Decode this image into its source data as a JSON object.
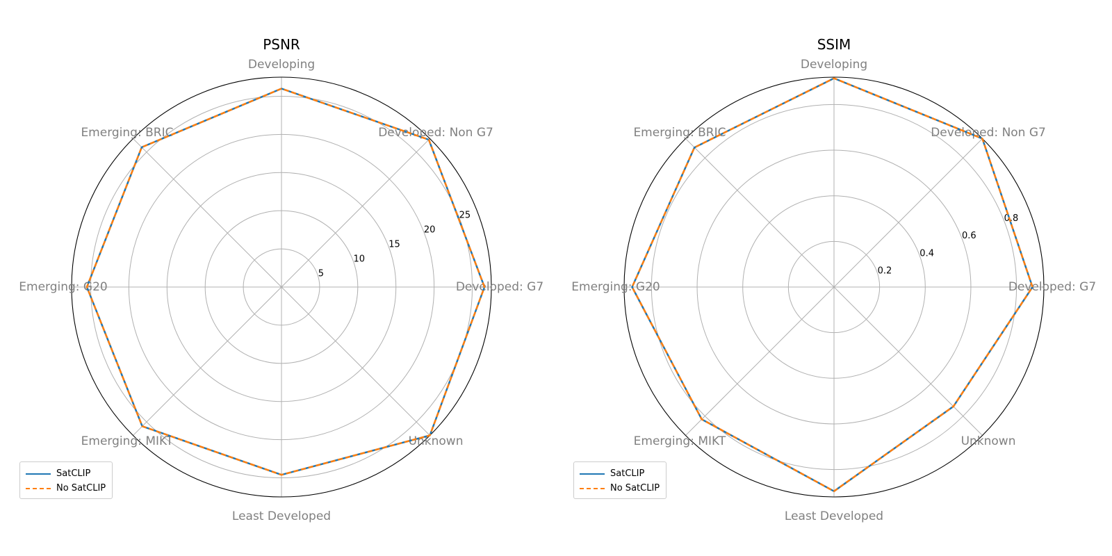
{
  "chart_data": [
    {
      "type": "radar",
      "title": "PSNR",
      "categories": [
        "Developed: G7",
        "Developed: Non G7",
        "Developing",
        "Emerging: BRIC",
        "Emerging: G20",
        "Emerging: MIKT",
        "Least Developed",
        "Unknown"
      ],
      "rlim": [
        0,
        27.5
      ],
      "rticks": [
        5,
        10,
        15,
        20,
        25
      ],
      "rtick_labels": [
        "5",
        "10",
        "15",
        "20",
        "25"
      ],
      "grid": true,
      "legend_position": "lower-left",
      "series": [
        {
          "name": "SatCLIP",
          "color": "#1f77b4",
          "linestyle": "solid",
          "values": [
            26.6,
            27.3,
            26.0,
            25.9,
            25.5,
            25.8,
            24.6,
            27.5
          ]
        },
        {
          "name": "No SatCLIP",
          "color": "#ff7f0e",
          "linestyle": "dashed",
          "values": [
            26.6,
            27.3,
            26.0,
            25.9,
            25.5,
            25.8,
            24.6,
            27.5
          ]
        }
      ]
    },
    {
      "type": "radar",
      "title": "SSIM",
      "categories": [
        "Developed: G7",
        "Developed: Non G7",
        "Developing",
        "Emerging: BRIC",
        "Emerging: G20",
        "Emerging: MIKT",
        "Least Developed",
        "Unknown"
      ],
      "rlim": [
        0,
        0.92
      ],
      "rticks": [
        0.2,
        0.4,
        0.6,
        0.8
      ],
      "rtick_labels": [
        "0.2",
        "0.4",
        "0.6",
        "0.8"
      ],
      "grid": true,
      "legend_position": "lower-left",
      "series": [
        {
          "name": "SatCLIP",
          "color": "#1f77b4",
          "linestyle": "solid",
          "values": [
            0.87,
            0.92,
            0.915,
            0.865,
            0.885,
            0.82,
            0.895,
            0.74
          ]
        },
        {
          "name": "No SatCLIP",
          "color": "#ff7f0e",
          "linestyle": "dashed",
          "values": [
            0.87,
            0.92,
            0.915,
            0.865,
            0.885,
            0.82,
            0.895,
            0.74
          ]
        }
      ]
    }
  ]
}
